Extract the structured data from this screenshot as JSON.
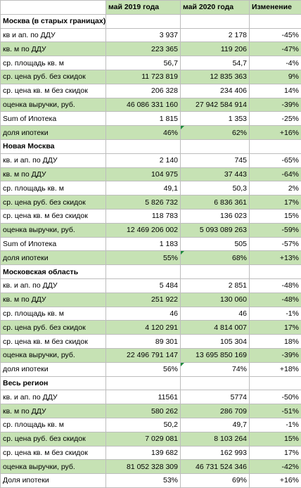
{
  "header": {
    "col_label": "",
    "col_2019": "май 2019 года",
    "col_2020": "май 2020 года",
    "col_change": "Изменение"
  },
  "sections": [
    {
      "title": "Москва (в старых границах)",
      "rows": [
        {
          "label": "кв и ап. по ДДУ",
          "v2019": "3 937",
          "v2020": "2 178",
          "change": "-45%"
        },
        {
          "label": "кв. м по ДДУ",
          "v2019": "223 365",
          "v2020": "119 206",
          "change": "-47%"
        },
        {
          "label": "ср. площадь кв. м",
          "v2019": "56,7",
          "v2020": "54,7",
          "change": "-4%"
        },
        {
          "label": "ср. цена руб. без скидок",
          "v2019": "11 723 819",
          "v2020": "12 835 363",
          "change": "9%"
        },
        {
          "label": "ср. цена кв. м без скидок",
          "v2019": "206 328",
          "v2020": "234 406",
          "change": "14%"
        },
        {
          "label": "оценка выручки, руб.",
          "v2019": "46 086 331 160",
          "v2020": "27 942 584 914",
          "change": "-39%"
        },
        {
          "label": "Sum of Ипотека",
          "v2019": "1 815",
          "v2020": "1 353",
          "change": "-25%"
        },
        {
          "label": "доля ипотеки",
          "v2019": "46%",
          "v2020": "62%",
          "change": "+16%"
        }
      ]
    },
    {
      "title": "Новая Москва",
      "rows": [
        {
          "label": "кв. и ап. по ДДУ",
          "v2019": "2 140",
          "v2020": "745",
          "change": "-65%"
        },
        {
          "label": "кв. м по ДДУ",
          "v2019": "104 975",
          "v2020": "37 443",
          "change": "-64%"
        },
        {
          "label": "ср. площадь кв. м",
          "v2019": "49,1",
          "v2020": "50,3",
          "change": "2%"
        },
        {
          "label": "ср. цена руб. без скидок",
          "v2019": "5 826 732",
          "v2020": "6 836 361",
          "change": "17%"
        },
        {
          "label": "ср. цена кв. м без скидок",
          "v2019": "118 783",
          "v2020": "136 023",
          "change": "15%"
        },
        {
          "label": "оценка выручки, руб.",
          "v2019": "12 469 206 002",
          "v2020": "5 093 089 263",
          "change": "-59%"
        },
        {
          "label": "Sum of Ипотека",
          "v2019": "1 183",
          "v2020": "505",
          "change": "-57%"
        },
        {
          "label": "доля ипотеки",
          "v2019": "55%",
          "v2020": "68%",
          "change": "+13%"
        }
      ]
    },
    {
      "title": "Московская область",
      "rows": [
        {
          "label": "кв. и ап. по ДДУ",
          "v2019": "5 484",
          "v2020": "2 851",
          "change": "-48%"
        },
        {
          "label": "кв. м по ДДУ",
          "v2019": "251 922",
          "v2020": "130 060",
          "change": "-48%"
        },
        {
          "label": "ср. площадь кв. м",
          "v2019": "46",
          "v2020": "46",
          "change": "-1%"
        },
        {
          "label": "ср. цена руб. без скидок",
          "v2019": "4 120 291",
          "v2020": "4 814 007",
          "change": "17%"
        },
        {
          "label": "ср. цена кв. м без скидок",
          "v2019": "89 301",
          "v2020": "105 304",
          "change": "18%"
        },
        {
          "label": "оценка выручки, руб.",
          "v2019": "22 496 791 147",
          "v2020": "13 695 850 169",
          "change": "-39%"
        },
        {
          "label": "доля ипотеки",
          "v2019": "56%",
          "v2020": "74%",
          "change": "+18%"
        }
      ]
    },
    {
      "title": "Весь регион",
      "rows": [
        {
          "label": "кв. и ап. по ДДУ",
          "v2019": "11561",
          "v2020": "5774",
          "change": "-50%"
        },
        {
          "label": "кв. м по ДДУ",
          "v2019": "580 262",
          "v2020": "286 709",
          "change": "-51%"
        },
        {
          "label": "ср. площадь кв. м",
          "v2019": "50,2",
          "v2020": "49,7",
          "change": "-1%"
        },
        {
          "label": "ср. цена руб. без скидок",
          "v2019": "7 029 081",
          "v2020": "8 103 264",
          "change": "15%"
        },
        {
          "label": "ср. цена кв. м без скидок",
          "v2019": "139 682",
          "v2020": "162 993",
          "change": "17%"
        },
        {
          "label": "оценка выручки, руб.",
          "v2019": "81 052 328 309",
          "v2020": "46 731 524 346",
          "change": "-42%"
        },
        {
          "label": "Доля ипотеки",
          "v2019": "53%",
          "v2020": "69%",
          "change": "+16%"
        }
      ]
    }
  ],
  "colors": {
    "row_fill": "#c6e2b4",
    "grid_line": "#bdbdbd",
    "error_marker": "#1e8a3c"
  }
}
